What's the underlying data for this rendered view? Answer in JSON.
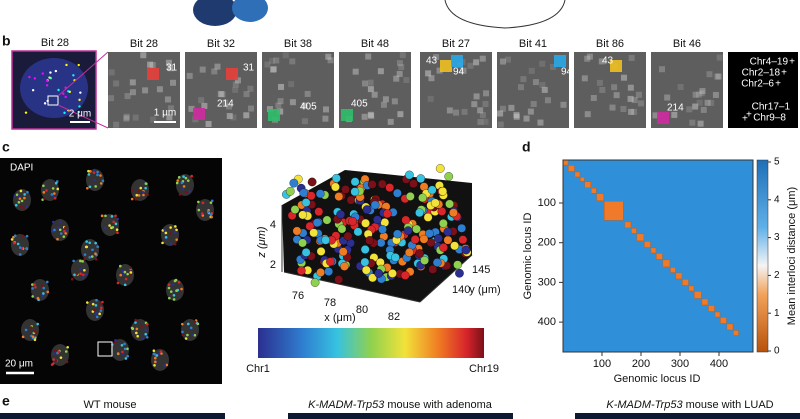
{
  "panel_b": {
    "label": "b",
    "inset_title": "Bit 28",
    "inset_scale": "2 μm",
    "plus": "+",
    "tiles": [
      {
        "title": "Bit 28",
        "spots": [
          "31"
        ],
        "scale": "1 μm"
      },
      {
        "title": "Bit 32",
        "spots": [
          "31",
          "214"
        ]
      },
      {
        "title": "Bit 38",
        "spots": [
          "405"
        ]
      },
      {
        "title": "Bit 48",
        "spots": [
          "405"
        ]
      },
      {
        "title": "Bit 27",
        "spots": [
          "43",
          "94"
        ]
      },
      {
        "title": "Bit 41",
        "spots": [
          "94"
        ]
      },
      {
        "title": "Bit 86",
        "spots": [
          "43"
        ]
      },
      {
        "title": "Bit 46",
        "spots": [
          "214"
        ]
      }
    ],
    "pairs": [
      "Chr4–19",
      "Chr2–18",
      "Chr2–6",
      "Chr17–1",
      "Chr9–8"
    ]
  },
  "panel_c": {
    "label": "c",
    "image_label": "DAPI",
    "scale": "20 μm",
    "z_label": "z (μm)",
    "x_label": "x (μm)",
    "y_label": "y (μm)",
    "z_ticks": [
      2,
      4
    ],
    "x_ticks": [
      76,
      78,
      80,
      82
    ],
    "y_ticks": [
      140,
      145
    ],
    "colorbar": [
      "Chr1",
      "Chr19"
    ]
  },
  "panel_d": {
    "label": "d",
    "x_label": "Genomic locus ID",
    "y_label": "Genomic locus ID",
    "x_ticks": [
      100,
      200,
      300,
      400
    ],
    "y_ticks": [
      100,
      200,
      300,
      400
    ],
    "colorbar_ticks": [
      0,
      1,
      2,
      3,
      4,
      5
    ],
    "colorbar_label": "Mean interloci distance (μm)"
  },
  "panel_e": {
    "label": "e",
    "titles": [
      {
        "text": "WT mouse"
      },
      {
        "italic": "K-MADM-Trp53",
        "text": "mouse with adenoma"
      },
      {
        "italic": "K-MADM-Trp53",
        "text": "mouse with LUAD"
      }
    ]
  }
}
